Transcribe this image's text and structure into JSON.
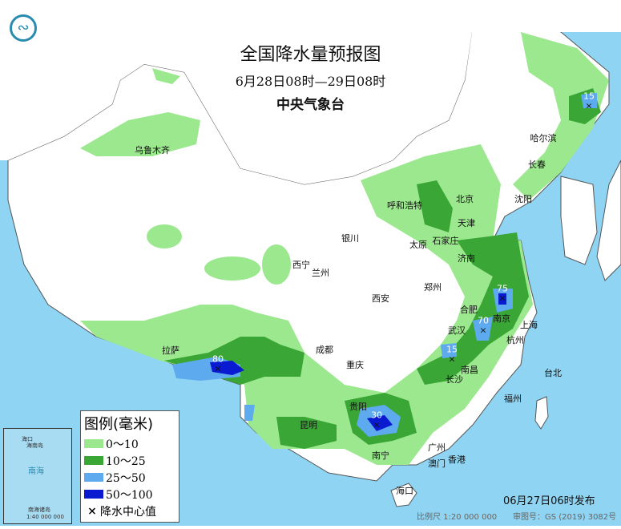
{
  "title": "全国降水量预报图",
  "period": "6月28日08时—29日08时",
  "agency": "中央气象台",
  "logo": "气象局标志",
  "colors": {
    "sea": "#8fd4f2",
    "land": "#ffffff",
    "light_green": "#9be88e",
    "dark_green": "#3aa635",
    "light_blue": "#5dabee",
    "dark_blue": "#0a1ad0"
  },
  "cities": [
    "乌鲁木齐",
    "哈尔滨",
    "长春",
    "沈阳",
    "呼和浩特",
    "北京",
    "天津",
    "太原",
    "石家庄",
    "济南",
    "银川",
    "西宁",
    "兰州",
    "郑州",
    "西安",
    "合肥",
    "南京",
    "上海",
    "武汉",
    "杭州",
    "成都",
    "重庆",
    "长沙",
    "南昌",
    "拉萨",
    "贵阳",
    "昆明",
    "福州",
    "台北",
    "南宁",
    "广州",
    "澳门",
    "香港",
    "海口"
  ],
  "center_values": [
    "15",
    "75",
    "70",
    "15",
    "80",
    "30"
  ],
  "legend": {
    "title": "图例(毫米)",
    "items": [
      {
        "label": "0～10",
        "color": "#9be88e"
      },
      {
        "label": "10～25",
        "color": "#3aa635"
      },
      {
        "label": "25～50",
        "color": "#5dabee"
      },
      {
        "label": "50～100",
        "color": "#0a1ad0"
      },
      {
        "label": "降水中心值",
        "symbol": "×"
      }
    ]
  },
  "inset": {
    "labels": [
      "南海",
      "南海诸岛",
      "1:40 000 000",
      "海口",
      "海南岛"
    ]
  },
  "footer": {
    "scale": "比例尺 1:20 000 000",
    "review": "审图号：GS (2019) 3082号",
    "published": "06月27日06时发布"
  }
}
